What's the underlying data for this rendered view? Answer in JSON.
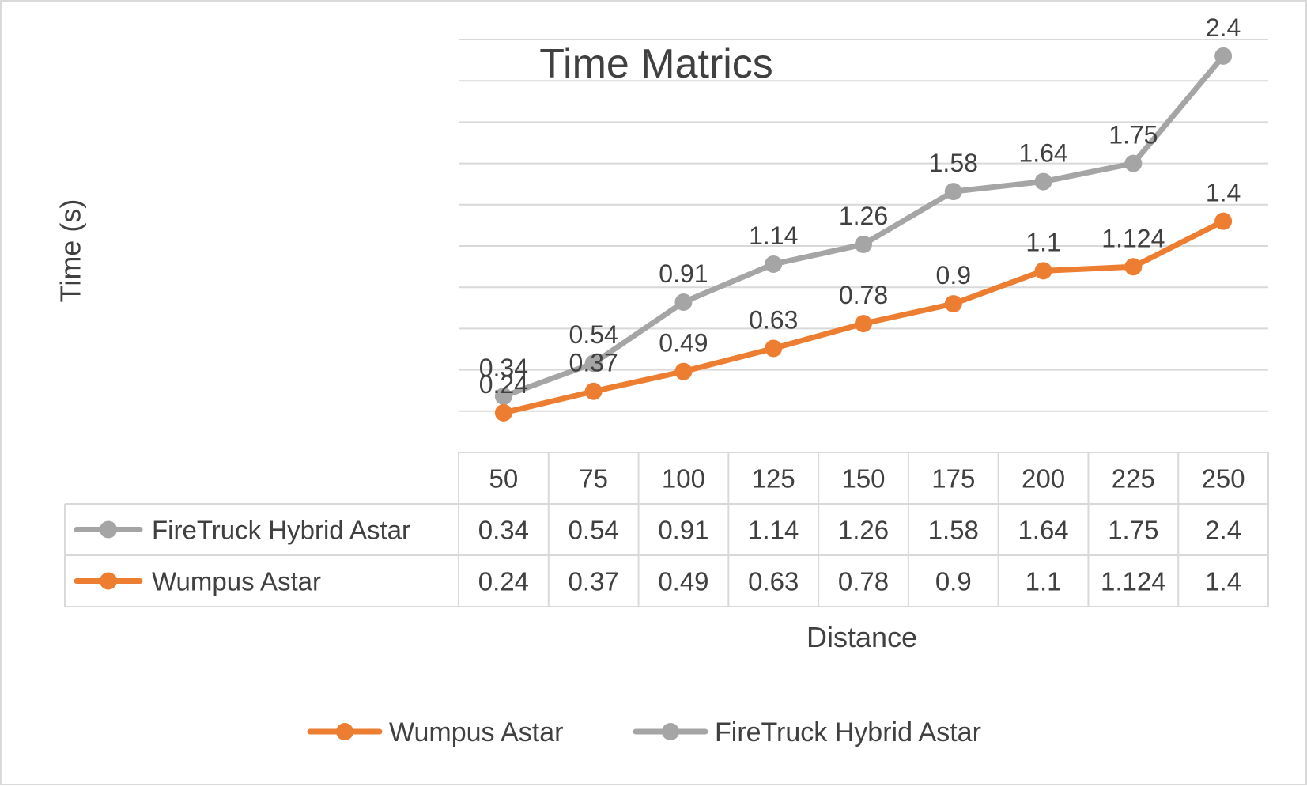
{
  "chart_data": {
    "type": "line",
    "title": "Time Matrics",
    "xlabel": "Distance",
    "ylabel": "Time (s)",
    "categories": [
      "50",
      "75",
      "100",
      "125",
      "150",
      "175",
      "200",
      "225",
      "250"
    ],
    "ylim": [
      0,
      2.5
    ],
    "y_gridline_step": 0.25,
    "grid": true,
    "data_table": true,
    "legend_position": "bottom",
    "series": [
      {
        "name": "FireTruck Hybrid Astar",
        "color": "#a5a5a5",
        "values": [
          0.34,
          0.54,
          0.91,
          1.14,
          1.26,
          1.58,
          1.64,
          1.75,
          2.4
        ],
        "labels": [
          "0.34",
          "0.54",
          "0.91",
          "1.14",
          "1.26",
          "1.58",
          "1.64",
          "1.75",
          "2.4"
        ]
      },
      {
        "name": "Wumpus Astar",
        "color": "#ed7d31",
        "values": [
          0.24,
          0.37,
          0.49,
          0.63,
          0.78,
          0.9,
          1.1,
          1.124,
          1.4
        ],
        "labels": [
          "0.24",
          "0.37",
          "0.49",
          "0.63",
          "0.78",
          "0.9",
          "1.1",
          "1.124",
          "1.4"
        ]
      }
    ],
    "legend": [
      {
        "name": "Wumpus Astar",
        "color": "#ed7d31"
      },
      {
        "name": "FireTruck Hybrid Astar",
        "color": "#a5a5a5"
      }
    ]
  }
}
